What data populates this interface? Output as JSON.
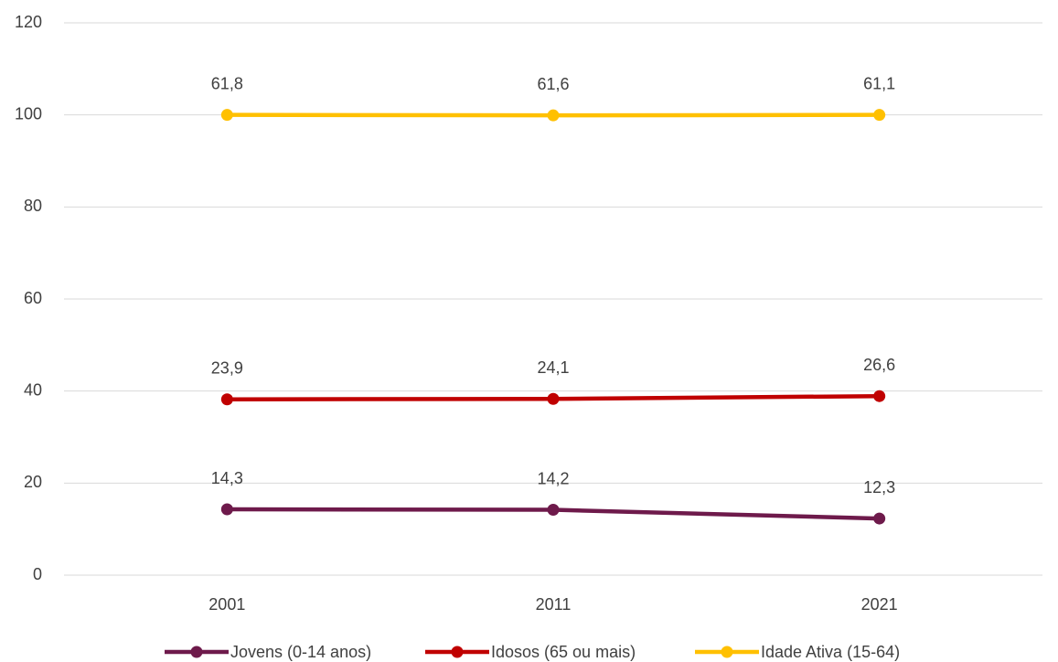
{
  "chart_data": {
    "type": "line",
    "stacked": true,
    "categories": [
      "2001",
      "2011",
      "2021"
    ],
    "series": [
      {
        "name": "Jovens (0-14 anos)",
        "color": "#6e1a4b",
        "values": [
          14.3,
          14.2,
          12.3
        ],
        "value_labels": [
          "14,3",
          "14,2",
          "12,3"
        ]
      },
      {
        "name": "Idosos (65 ou mais)",
        "color": "#c00000",
        "values": [
          23.9,
          24.1,
          26.6
        ],
        "value_labels": [
          "23,9",
          "24,1",
          "26,6"
        ]
      },
      {
        "name": "Idade Ativa (15-64)",
        "color": "#ffc000",
        "values": [
          61.8,
          61.6,
          61.1
        ],
        "value_labels": [
          "61,8",
          "61,6",
          "61,1"
        ]
      }
    ],
    "ylim": [
      0,
      120
    ],
    "yticks": [
      0,
      20,
      40,
      60,
      80,
      100,
      120
    ],
    "grid": true,
    "legend": "bottom"
  }
}
